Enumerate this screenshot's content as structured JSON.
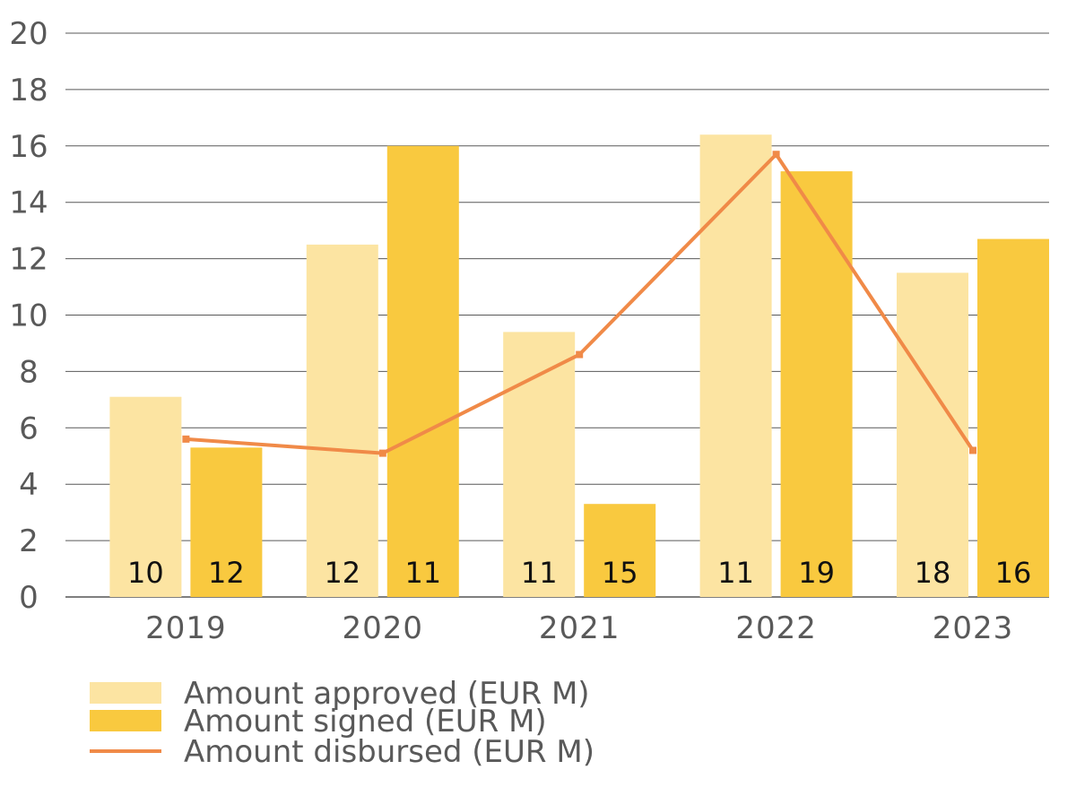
{
  "chart_data": {
    "type": "bar",
    "categories": [
      "2019",
      "2020",
      "2021",
      "2022",
      "2023"
    ],
    "ylim": [
      0,
      20
    ],
    "yticks": [
      0,
      2,
      4,
      6,
      8,
      10,
      12,
      14,
      16,
      18,
      20
    ],
    "grid": true,
    "series": [
      {
        "name": "Amount approved (EUR M)",
        "type": "bar",
        "color": "#FCE4A2",
        "values": [
          7.1,
          12.5,
          9.4,
          16.4,
          11.5
        ]
      },
      {
        "name": "Amount signed (EUR M)",
        "type": "bar",
        "color": "#F9C93F",
        "values": [
          5.3,
          16.0,
          3.3,
          15.1,
          12.7
        ]
      },
      {
        "name": "Amount disbursed (EUR M)",
        "type": "line",
        "color": "#F08A48",
        "values": [
          5.6,
          5.1,
          8.6,
          15.7,
          5.2
        ]
      }
    ],
    "bar_labels": {
      "approved": [
        "10",
        "12",
        "11",
        "11",
        "18"
      ],
      "signed": [
        "12",
        "11",
        "15",
        "19",
        "16"
      ]
    },
    "legend_position": "bottom-left"
  }
}
